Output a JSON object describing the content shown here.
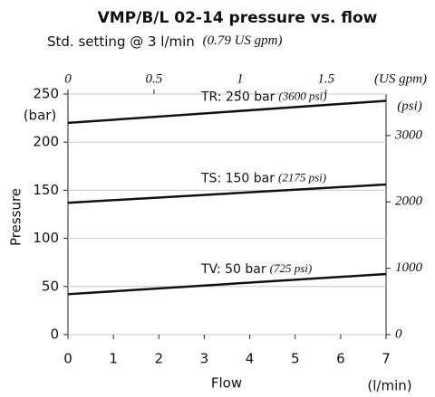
{
  "chart_data": {
    "type": "line",
    "title": "VMP/B/L 02-14 pressure vs. flow",
    "subtitle": "Std. setting @ 3 l/min",
    "subtitle_note": "(0.79 US gpm)",
    "xlabel": "Flow",
    "x_unit": "(l/min)",
    "ylabel": "Pressure",
    "y_unit": "(bar)",
    "x2_unit": "(US gpm)",
    "y2_unit": "(psi)",
    "xlim": [
      0,
      7
    ],
    "xticks": [
      0,
      1,
      2,
      3,
      4,
      5,
      6,
      7
    ],
    "ylim": [
      0,
      250
    ],
    "yticks": [
      0,
      50,
      100,
      150,
      200,
      250
    ],
    "x2lim": [
      0,
      1.849
    ],
    "x2ticks": [
      0,
      0.5,
      1,
      1.5
    ],
    "y2lim": [
      0,
      3626
    ],
    "y2ticks": [
      0,
      1000,
      2000,
      3000
    ],
    "grid": true,
    "series": [
      {
        "name": "TR: 250 bar",
        "note": "(3600 psi)",
        "color": "#111111",
        "x": [
          0,
          7
        ],
        "values": [
          220,
          243
        ]
      },
      {
        "name": "TS: 150 bar",
        "note": "(2175 psi)",
        "color": "#111111",
        "x": [
          0,
          7
        ],
        "values": [
          137,
          156
        ]
      },
      {
        "name": "TV: 50 bar",
        "note": "(725 psi)",
        "color": "#111111",
        "x": [
          0,
          7
        ],
        "values": [
          42,
          63
        ]
      }
    ]
  }
}
